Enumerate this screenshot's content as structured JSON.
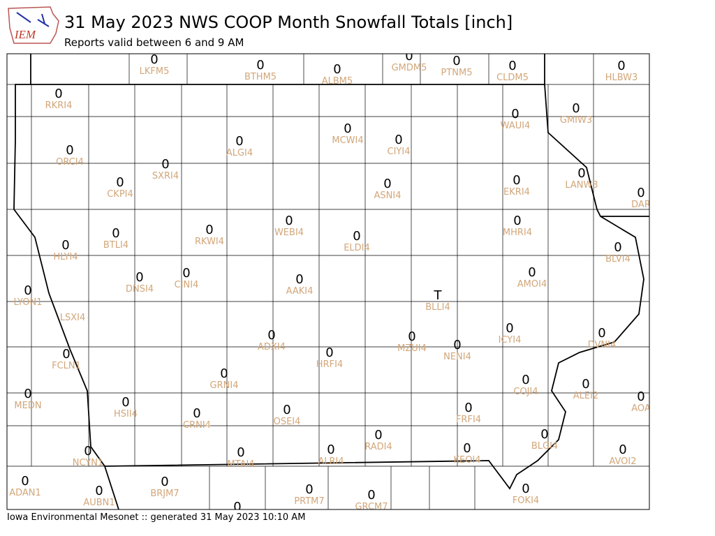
{
  "header": {
    "logo": "IEM",
    "title": "31 May 2023 NWS COOP Month Snowfall Totals [inch]",
    "subtitle": "Reports valid between 6 and 9 AM"
  },
  "footer": "Iowa Environmental Mesonet :: generated 31 May 2023 10:10 AM",
  "stations": [
    {
      "value": "0",
      "id": "LKFM5"
    },
    {
      "value": "0",
      "id": "BTHM5"
    },
    {
      "value": "0",
      "id": "ALBM5"
    },
    {
      "value": "0",
      "id": "GMDM5"
    },
    {
      "value": "0",
      "id": "PTNM5"
    },
    {
      "value": "0",
      "id": "CLDM5"
    },
    {
      "value": "0",
      "id": "HLBW3"
    },
    {
      "value": "0",
      "id": "RKRI4"
    },
    {
      "value": "0",
      "id": "ORCI4"
    },
    {
      "value": "0",
      "id": "CKPI4"
    },
    {
      "value": "0",
      "id": "SXRI4"
    },
    {
      "value": "0",
      "id": "ALGI4"
    },
    {
      "value": "0",
      "id": "MCWI4"
    },
    {
      "value": "0",
      "id": "CIYI4"
    },
    {
      "value": "0",
      "id": "WAUI4"
    },
    {
      "value": "0",
      "id": "GMIW3"
    },
    {
      "value": "0",
      "id": "ASNI4"
    },
    {
      "value": "0",
      "id": "EKRI4"
    },
    {
      "value": "0",
      "id": "LANW3"
    },
    {
      "value": "0",
      "id": "DAR"
    },
    {
      "value": "0",
      "id": "BTLI4"
    },
    {
      "value": "0",
      "id": "RKWI4"
    },
    {
      "value": "0",
      "id": "WEBI4"
    },
    {
      "value": "0",
      "id": "ELDI4"
    },
    {
      "value": "0",
      "id": "MHRI4"
    },
    {
      "value": "0",
      "id": "HLYI4"
    },
    {
      "value": "0",
      "id": "BLVI4"
    },
    {
      "value": "0",
      "id": "DNSI4"
    },
    {
      "value": "0",
      "id": "CINI4"
    },
    {
      "value": "0",
      "id": "AAKI4"
    },
    {
      "value": "0",
      "id": "AMOI4"
    },
    {
      "value": "0",
      "id": "LYON1"
    },
    {
      "value": "T",
      "id": "BLLI4"
    },
    {
      "id": "LSXI4"
    },
    {
      "value": "0",
      "id": "ICYI4"
    },
    {
      "value": "0",
      "id": "DVNI4"
    },
    {
      "value": "0",
      "id": "ADXI4"
    },
    {
      "value": "0",
      "id": "MZUI4"
    },
    {
      "value": "0",
      "id": "NENI4"
    },
    {
      "value": "0",
      "id": "HRFI4"
    },
    {
      "value": "0",
      "id": "FCLN1"
    },
    {
      "value": "0",
      "id": "GRNI4"
    },
    {
      "value": "0",
      "id": "ALEI2"
    },
    {
      "value": "0",
      "id": "COJI4"
    },
    {
      "value": "0",
      "id": "MEDN"
    },
    {
      "value": "0",
      "id": "HSII4"
    },
    {
      "value": "0",
      "id": "AOA"
    },
    {
      "value": "0",
      "id": "CRNI4"
    },
    {
      "value": "0",
      "id": "OSEI4"
    },
    {
      "value": "0",
      "id": "FRFI4"
    },
    {
      "value": "0",
      "id": "BLGI4"
    },
    {
      "value": "0",
      "id": "RADI4"
    },
    {
      "value": "0",
      "id": "KEOI4"
    },
    {
      "value": "0",
      "id": "ALRI4"
    },
    {
      "value": "0",
      "id": "NCYN1"
    },
    {
      "value": "0",
      "id": "MTAI4"
    },
    {
      "value": "0",
      "id": "AVOI2"
    },
    {
      "value": "0",
      "id": "ADAN1"
    },
    {
      "value": "0",
      "id": "BRJM7"
    },
    {
      "value": "0",
      "id": "AUBN1"
    },
    {
      "value": "0",
      "id": "FOKI4"
    },
    {
      "value": "0",
      "id": "PRTM7"
    },
    {
      "value": "0",
      "id": "GRCM7"
    },
    {
      "value": "0"
    }
  ]
}
